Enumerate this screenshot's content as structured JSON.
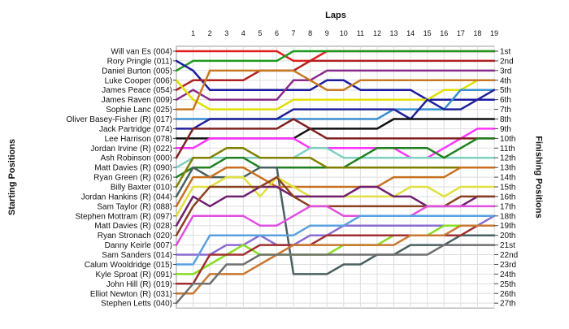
{
  "chart_data": {
    "type": "line",
    "title": "",
    "xlabel": "Laps",
    "ylabel_left": "Starting Positions",
    "ylabel_right": "Finishing Positions",
    "x_ticks": [
      1,
      2,
      3,
      4,
      5,
      6,
      7,
      8,
      9,
      10,
      11,
      12,
      13,
      14,
      15,
      16,
      17,
      18,
      19
    ],
    "x_range": [
      0,
      19
    ],
    "y_range": [
      1,
      27
    ],
    "y_inverted": true,
    "grid": true,
    "drivers": [
      "Will van Es (004)",
      "Rory Pringle (011)",
      "Daniel Burton (005)",
      "Luke Cooper (006)",
      "James Peace (054)",
      "James Raven (009)",
      "Sophie Lanc (025)",
      "Oliver Basey-Fisher (R) (017)",
      "Jack Partridge (074)",
      "Lee Harrison (078)",
      "Jordan Irvine (R) (022)",
      "Ash Robinson (000)",
      "Matt Davies (R) (090)",
      "Ryan Green (R) (026)",
      "Billy Baxter (010)",
      "Jordan Hankins (R) (044)",
      "Sam Taylor (R) (088)",
      "Stephen Mottram (R) (097)",
      "Matt Davies (R) (028)",
      "Ryan Stronach (020)",
      "Danny Keirle (007)",
      "Sam Sanders (014)",
      "Calum Wooldridge (015)",
      "Kyle Sproat (R) (091)",
      "John Hill (R) (019)",
      "Elliot Newton (R) (031)",
      "Stephen Letts (040)"
    ],
    "finishing_labels": [
      "1st",
      "2nd",
      "3rd",
      "4th",
      "5th",
      "6th",
      "7th",
      "8th",
      "9th",
      "10th",
      "11th",
      "12th",
      "13th",
      "14th",
      "15th",
      "16th",
      "17th",
      "18th",
      "19th",
      "20th",
      "21st",
      "22nd",
      "23rd",
      "24th",
      "25th",
      "26th",
      "27th"
    ],
    "series": [
      {
        "color": "#e02020",
        "start": 1,
        "positions": [
          1,
          1,
          1,
          1,
          1,
          1,
          2,
          2,
          1,
          1,
          1,
          1,
          1,
          1,
          1,
          1,
          1,
          1,
          1
        ]
      },
      {
        "color": "#1e9a1e",
        "start": 3,
        "positions": [
          2,
          2,
          2,
          2,
          2,
          2,
          1,
          1,
          1,
          1,
          1,
          1,
          1,
          1,
          1,
          1,
          1,
          1,
          1
        ]
      },
      {
        "color": "#1a1aa0",
        "start": 2,
        "positions": [
          3,
          5,
          5,
          5,
          5,
          5,
          5,
          5,
          4,
          4,
          5,
          5,
          5,
          5,
          6,
          6,
          6,
          6,
          6
        ]
      },
      {
        "color": "#b02020",
        "start": 5,
        "positions": [
          4,
          4,
          4,
          4,
          3,
          3,
          3,
          2,
          2,
          2,
          2,
          2,
          2,
          2,
          2,
          2,
          2,
          2,
          2
        ]
      },
      {
        "color": "#8a2a8a",
        "start": 6,
        "positions": [
          5,
          6,
          6,
          6,
          6,
          6,
          4,
          4,
          3,
          3,
          3,
          3,
          3,
          3,
          3,
          3,
          3,
          3,
          3
        ]
      },
      {
        "color": "#e0e000",
        "start": 4,
        "positions": [
          6,
          7,
          7,
          7,
          7,
          7,
          6,
          6,
          6,
          6,
          6,
          6,
          6,
          6,
          6,
          5,
          5,
          4,
          4
        ]
      },
      {
        "color": "#c87820",
        "start": 7,
        "positions": [
          7,
          3,
          3,
          3,
          3,
          3,
          3,
          4,
          5,
          5,
          4,
          4,
          4,
          4,
          4,
          4,
          4,
          4,
          4
        ]
      },
      {
        "color": "#3a8fd0",
        "start": 8,
        "positions": [
          8,
          8,
          8,
          8,
          8,
          8,
          8,
          8,
          8,
          8,
          8,
          8,
          7,
          7,
          7,
          7,
          5,
          5,
          5
        ]
      },
      {
        "color": "#20209a",
        "start": 9,
        "positions": [
          9,
          8,
          8,
          8,
          8,
          8,
          7,
          7,
          7,
          7,
          7,
          7,
          7,
          8,
          6,
          7,
          7,
          6,
          5
        ]
      },
      {
        "color": "#101010",
        "start": 10,
        "positions": [
          10,
          10,
          10,
          10,
          10,
          10,
          10,
          9,
          9,
          9,
          9,
          9,
          8,
          8,
          8,
          8,
          8,
          8,
          8
        ]
      },
      {
        "color": "#ff33ff",
        "start": 11,
        "positions": [
          11,
          10,
          10,
          10,
          10,
          10,
          10,
          11,
          11,
          11,
          11,
          11,
          11,
          12,
          12,
          11,
          10,
          9,
          9
        ]
      },
      {
        "color": "#802020",
        "start": 12,
        "positions": [
          9,
          9,
          9,
          9,
          9,
          9,
          8,
          9,
          10,
          10,
          10,
          10,
          10,
          10,
          10,
          10,
          10,
          10,
          10
        ]
      },
      {
        "color": "#7fd0c0",
        "start": 13,
        "positions": [
          12,
          12,
          12,
          12,
          12,
          12,
          12,
          11,
          11,
          12,
          12,
          12,
          12,
          12,
          12,
          12,
          12,
          12,
          12
        ]
      },
      {
        "color": "#208020",
        "start": 14,
        "positions": [
          13,
          13,
          12,
          12,
          13,
          13,
          13,
          13,
          13,
          13,
          12,
          11,
          11,
          11,
          11,
          12,
          11,
          10,
          10
        ]
      },
      {
        "color": "#808000",
        "start": 15,
        "positions": [
          12,
          12,
          11,
          11,
          12,
          12,
          12,
          12,
          13,
          13,
          13,
          13,
          13,
          13,
          13,
          13,
          13,
          13,
          13
        ]
      },
      {
        "color": "#4a6060",
        "start": 16,
        "positions": [
          13,
          14,
          14,
          14,
          13,
          13,
          24,
          24,
          24,
          23,
          23,
          22,
          22,
          21,
          21,
          21,
          20,
          20,
          20
        ]
      },
      {
        "color": "#c87020",
        "start": 17,
        "positions": [
          14,
          14,
          13,
          13,
          14,
          15,
          15,
          15,
          15,
          15,
          15,
          15,
          14,
          14,
          14,
          14,
          13,
          13,
          13
        ]
      },
      {
        "color": "#e0e040",
        "start": 18,
        "positions": [
          15,
          15,
          14,
          14,
          16,
          14,
          15,
          16,
          16,
          16,
          16,
          16,
          16,
          15,
          15,
          16,
          15,
          15,
          15
        ]
      },
      {
        "color": "#702070",
        "start": 19,
        "positions": [
          16,
          17,
          16,
          16,
          15,
          15,
          16,
          16,
          16,
          16,
          15,
          15,
          16,
          16,
          17,
          17,
          17,
          16,
          16
        ]
      },
      {
        "color": "#8a4020",
        "start": 20,
        "positions": [
          17,
          15,
          15,
          15,
          15,
          14,
          16,
          17,
          17,
          17,
          17,
          17,
          17,
          17,
          17,
          17,
          16,
          16,
          16
        ]
      },
      {
        "color": "#e050e0",
        "start": 21,
        "positions": [
          18,
          18,
          18,
          18,
          19,
          19,
          18,
          17,
          17,
          18,
          18,
          18,
          18,
          18,
          17,
          17,
          17,
          17,
          17
        ]
      },
      {
        "color": "#8a6bd0",
        "start": 22,
        "positions": [
          22,
          22,
          21,
          21,
          20,
          21,
          21,
          20,
          20,
          19,
          19,
          19,
          19,
          19,
          19,
          19,
          19,
          19,
          18
        ]
      },
      {
        "color": "#5aa0e0",
        "start": 23,
        "positions": [
          23,
          20,
          20,
          20,
          20,
          20,
          20,
          19,
          19,
          19,
          18,
          18,
          18,
          18,
          18,
          18,
          18,
          18,
          18
        ]
      },
      {
        "color": "#88dd22",
        "start": 24,
        "positions": [
          24,
          23,
          22,
          21,
          22,
          22,
          22,
          22,
          22,
          21,
          21,
          21,
          20,
          20,
          20,
          19,
          19,
          19,
          19
        ]
      },
      {
        "color": "#a03030",
        "start": 25,
        "positions": [
          25,
          22,
          22,
          22,
          21,
          21,
          21,
          21,
          20,
          20,
          20,
          20,
          20,
          20,
          20,
          20,
          20,
          19,
          19
        ]
      },
      {
        "color": "#c87830",
        "start": 26,
        "positions": [
          26,
          24,
          24,
          24,
          23,
          22,
          21,
          21,
          21,
          21,
          21,
          21,
          21,
          20,
          20,
          20,
          19,
          19,
          19
        ]
      },
      {
        "color": "#707070",
        "start": 27,
        "positions": [
          25,
          25,
          23,
          23,
          22,
          22,
          22,
          22,
          22,
          22,
          22,
          22,
          22,
          22,
          22,
          21,
          21,
          21,
          21
        ]
      }
    ]
  }
}
